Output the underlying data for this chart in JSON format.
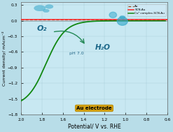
{
  "title": "",
  "xlabel": "Potential/ V vs. RHE",
  "ylabel": "Current density/ mAcm⁻²",
  "xlim": [
    2.0,
    0.6
  ],
  "ylim": [
    -1.8,
    0.35
  ],
  "yticks": [
    0.3,
    0.0,
    -0.3,
    -0.6,
    -0.9,
    -1.2,
    -1.5,
    -1.8
  ],
  "xticks": [
    2.0,
    1.8,
    1.6,
    1.4,
    1.2,
    1.0,
    0.8,
    0.6
  ],
  "bg_color": "#b8dde8",
  "plot_bg": "#c8e8f2",
  "grid_color": "#9bbfcc",
  "au_color": "#8B4513",
  "scn_color": "#ff2222",
  "cu_color": "#118811",
  "legend_labels": [
    "Au",
    "SCN-Au",
    "Cu² complex-SCN-Au"
  ],
  "au_electrode_color": "#d4a010",
  "au_electrode_text": "Au electrode",
  "annotation_o2": "O₂",
  "annotation_h2o": "H₂O",
  "annotation_ph": "pH 7.0",
  "bubble_color": "#4ab0d0",
  "drop_color": "#3aabcc",
  "arrow_color": "#228855"
}
